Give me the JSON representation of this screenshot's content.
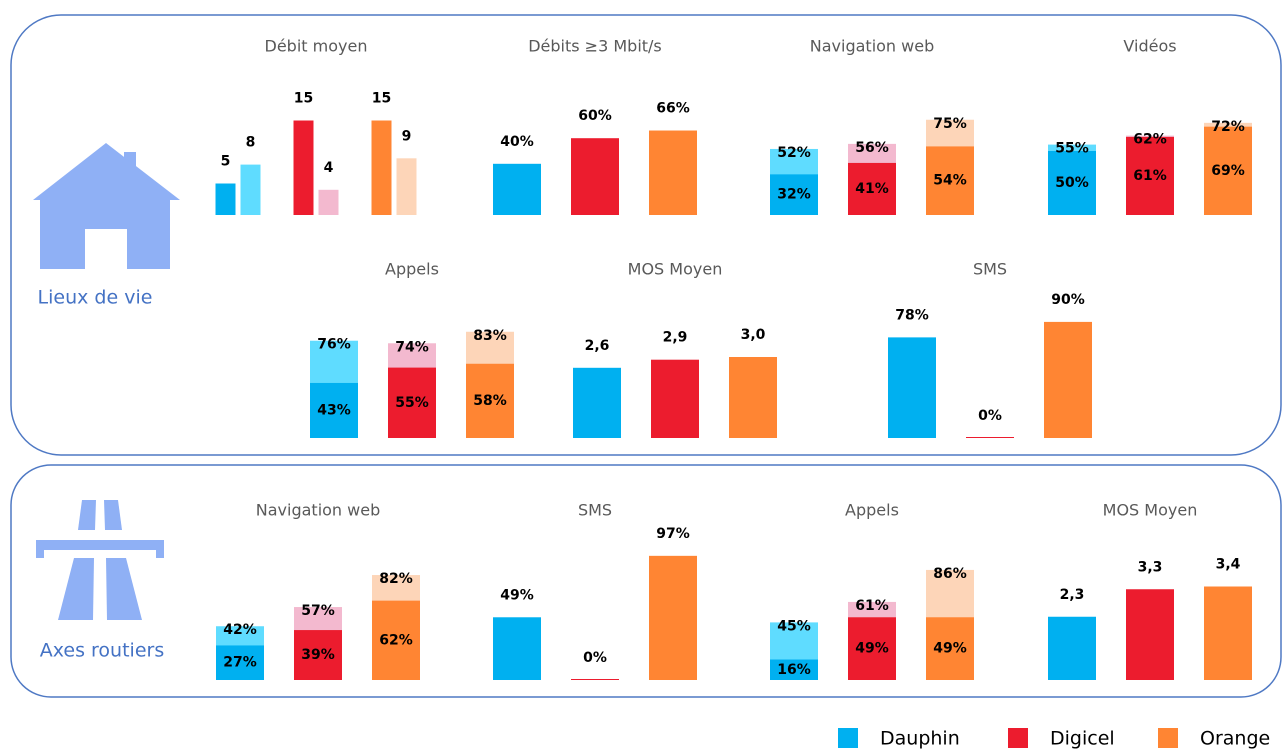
{
  "legend": [
    {
      "name": "Dauphin",
      "color": "#00b0f0",
      "light_color": "#5fdcff"
    },
    {
      "name": "Digicel",
      "color": "#ec1c2e",
      "light_color": "#f3b9cf"
    },
    {
      "name": "Orange",
      "color": "#ff8533",
      "light_color": "#fdd5b8"
    }
  ],
  "sections": [
    {
      "label": "Lieux de vie",
      "panels": [
        {
          "title": "Débit moyen",
          "type": "pair",
          "values": [
            [
              5,
              8
            ],
            [
              15,
              4
            ],
            [
              15,
              9
            ]
          ]
        },
        {
          "title": "Débits  ≥3 Mbit/s",
          "type": "bar",
          "values": [
            40,
            60,
            66
          ],
          "value_labels": [
            "40%",
            "60%",
            "66%"
          ]
        },
        {
          "title": "Navigation web",
          "type": "overlap",
          "values": [
            [
              52,
              32
            ],
            [
              56,
              41
            ],
            [
              75,
              54
            ]
          ],
          "value_labels": [
            [
              "52%",
              "32%"
            ],
            [
              "56%",
              "41%"
            ],
            [
              "75%",
              "54%"
            ]
          ]
        },
        {
          "title": "Vidéos",
          "type": "overlap",
          "values": [
            [
              55,
              50
            ],
            [
              62,
              61
            ],
            [
              72,
              69
            ]
          ],
          "value_labels": [
            [
              "55%",
              "50%"
            ],
            [
              "62%",
              "61%"
            ],
            [
              "72%",
              "69%"
            ]
          ]
        },
        {
          "title": "Appels",
          "type": "overlap",
          "values": [
            [
              76,
              43
            ],
            [
              74,
              55
            ],
            [
              83,
              58
            ]
          ],
          "value_labels": [
            [
              "76%",
              "43%"
            ],
            [
              "74%",
              "55%"
            ],
            [
              "83%",
              "58%"
            ]
          ]
        },
        {
          "title": "MOS Moyen",
          "type": "bar",
          "values": [
            2.6,
            2.9,
            3.0
          ],
          "value_labels": [
            "2,6",
            "2,9",
            "3,0"
          ]
        },
        {
          "title": "SMS",
          "type": "bar",
          "values": [
            78,
            0,
            90
          ],
          "value_labels": [
            "78%",
            "0%",
            "90%"
          ]
        }
      ]
    },
    {
      "label": "Axes routiers",
      "panels": [
        {
          "title": "Navigation web",
          "type": "overlap",
          "values": [
            [
              42,
              27
            ],
            [
              57,
              39
            ],
            [
              82,
              62
            ]
          ],
          "value_labels": [
            [
              "42%",
              "27%"
            ],
            [
              "57%",
              "39%"
            ],
            [
              "82%",
              "62%"
            ]
          ]
        },
        {
          "title": "SMS",
          "type": "bar",
          "values": [
            49,
            0,
            97
          ],
          "value_labels": [
            "49%",
            "0%",
            "97%"
          ]
        },
        {
          "title": "Appels",
          "type": "overlap",
          "values": [
            [
              45,
              16
            ],
            [
              61,
              49
            ],
            [
              86,
              49
            ]
          ],
          "value_labels": [
            [
              "45%",
              "16%"
            ],
            [
              "61%",
              "49%"
            ],
            [
              "86%",
              "49%"
            ]
          ]
        },
        {
          "title": "MOS Moyen",
          "type": "bar",
          "values": [
            2.3,
            3.3,
            3.4
          ],
          "value_labels": [
            "2,3",
            "3,3",
            "3,4"
          ]
        }
      ]
    }
  ]
}
